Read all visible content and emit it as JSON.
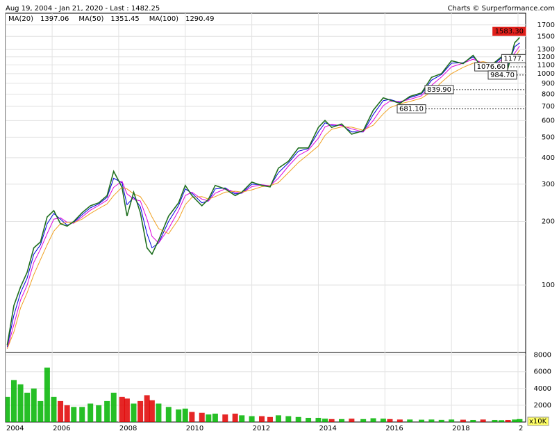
{
  "chart_data": {
    "type": "line",
    "title": "Aug 19, 2004 - Jan 21, 2020 - Last : 1482.25",
    "credit": "Charts © Surperformance.com",
    "log_scale": true,
    "grid": true,
    "xlim": [
      2004.6,
      2020.23
    ],
    "xticks": [
      {
        "value": 2004.6,
        "label": "2004"
      },
      2006,
      2008,
      2010,
      2012,
      2014,
      2016,
      2018,
      {
        "value": 2020,
        "label": "2"
      }
    ],
    "ylim": [
      48,
      1930
    ],
    "yticks": [
      100,
      200,
      300,
      400,
      500,
      600,
      700,
      800,
      900,
      1000,
      1100,
      1200,
      1300,
      1500,
      1700
    ],
    "x": [
      2004.65,
      2004.85,
      2005.05,
      2005.25,
      2005.45,
      2005.65,
      2005.85,
      2006.05,
      2006.25,
      2006.45,
      2006.65,
      2006.9,
      2007.15,
      2007.4,
      2007.65,
      2007.85,
      2008.1,
      2008.25,
      2008.45,
      2008.65,
      2008.85,
      2009.0,
      2009.2,
      2009.5,
      2009.8,
      2010.0,
      2010.2,
      2010.5,
      2010.7,
      2010.9,
      2011.2,
      2011.5,
      2011.7,
      2012.0,
      2012.3,
      2012.55,
      2012.8,
      2013.1,
      2013.4,
      2013.7,
      2014.0,
      2014.2,
      2014.4,
      2014.7,
      2015.0,
      2015.35,
      2015.65,
      2015.95,
      2016.15,
      2016.45,
      2016.75,
      2017.1,
      2017.4,
      2017.7,
      2018.0,
      2018.35,
      2018.65,
      2018.95,
      2019.3,
      2019.5,
      2019.7,
      2019.9,
      2020.05
    ],
    "up_color": "#00b400",
    "down_color": "#e00000",
    "series": [
      {
        "color": "#1f6f1f",
        "values": [
          52,
          80,
          98,
          115,
          150,
          160,
          210,
          225,
          195,
          190,
          200,
          220,
          237,
          245,
          265,
          345,
          290,
          212,
          275,
          220,
          150,
          140,
          163,
          212,
          245,
          296,
          265,
          237,
          255,
          296,
          285,
          265,
          275,
          307,
          296,
          291,
          357,
          385,
          445,
          445,
          557,
          600,
          557,
          578,
          517,
          537,
          671,
          768,
          750,
          723,
          780,
          810,
          960,
          1000,
          1150,
          1115,
          1220,
          1050,
          1130,
          1200,
          1065,
          1400,
          1482.25
        ]
      },
      {
        "name": "MA(20)",
        "last": 1397.06,
        "color": "#0000dd",
        "values": [
          51,
          72,
          92,
          108,
          140,
          155,
          195,
          218,
          205,
          192,
          198,
          215,
          232,
          242,
          260,
          320,
          305,
          240,
          260,
          235,
          175,
          150,
          158,
          200,
          238,
          285,
          272,
          245,
          250,
          285,
          288,
          270,
          272,
          300,
          298,
          293,
          340,
          378,
          430,
          442,
          530,
          585,
          570,
          570,
          530,
          530,
          640,
          745,
          755,
          730,
          770,
          800,
          930,
          990,
          1120,
          1125,
          1200,
          1080,
          1115,
          1185,
          1095,
          1340,
          1397.06
        ]
      },
      {
        "name": "MA(50)",
        "last": 1351.45,
        "color": "#dd00dd",
        "values": [
          50,
          65,
          85,
          100,
          128,
          148,
          175,
          205,
          208,
          198,
          196,
          210,
          226,
          238,
          252,
          290,
          310,
          270,
          255,
          250,
          205,
          170,
          158,
          185,
          225,
          265,
          275,
          255,
          250,
          272,
          285,
          275,
          272,
          292,
          298,
          295,
          320,
          365,
          410,
          435,
          495,
          560,
          575,
          568,
          548,
          530,
          600,
          705,
          740,
          738,
          755,
          785,
          880,
          965,
          1075,
          1120,
          1170,
          1120,
          1095,
          1160,
          1130,
          1250,
          1351.45
        ]
      },
      {
        "name": "MA(100)",
        "last": 1290.49,
        "color": "#f0a020",
        "values": [
          50,
          60,
          78,
          92,
          112,
          132,
          155,
          180,
          195,
          198,
          197,
          205,
          218,
          230,
          242,
          265,
          290,
          285,
          270,
          262,
          235,
          210,
          185,
          175,
          205,
          240,
          260,
          262,
          255,
          262,
          275,
          278,
          275,
          282,
          292,
          295,
          305,
          340,
          380,
          415,
          455,
          510,
          545,
          560,
          558,
          540,
          570,
          645,
          690,
          720,
          738,
          765,
          820,
          910,
          1000,
          1070,
          1120,
          1140,
          1110,
          1130,
          1140,
          1200,
          1290.49
        ]
      }
    ],
    "annotations": [
      {
        "value": 1583.3,
        "label": "1583.30",
        "color": "#e0201b"
      },
      {
        "value": 1177,
        "label": "1177."
      },
      {
        "value": 1076.6,
        "label": "1076.60"
      },
      {
        "value": 984.7,
        "label": "984.70"
      },
      {
        "value": 839.9,
        "label": "839.90",
        "dashed": true
      },
      {
        "value": 681.1,
        "label": "681.10",
        "dashed": true
      }
    ],
    "volume": {
      "unit_label": "x10K",
      "ylim": [
        0,
        8300
      ],
      "yticks": [
        2000,
        4000,
        6000,
        8000
      ],
      "values": [
        3000,
        5000,
        4500,
        3500,
        4000,
        2500,
        6500,
        3000,
        2500,
        2000,
        1800,
        1800,
        2200,
        2000,
        2500,
        3500,
        3000,
        2800,
        2200,
        2500,
        3200,
        2600,
        2200,
        1800,
        1500,
        1600,
        1200,
        1100,
        900,
        1000,
        900,
        1000,
        800,
        700,
        700,
        600,
        800,
        700,
        600,
        500,
        500,
        400,
        350,
        350,
        400,
        350,
        450,
        400,
        350,
        300,
        300,
        280,
        300,
        260,
        300,
        280,
        250,
        300,
        250,
        220,
        250,
        300,
        350
      ]
    }
  }
}
